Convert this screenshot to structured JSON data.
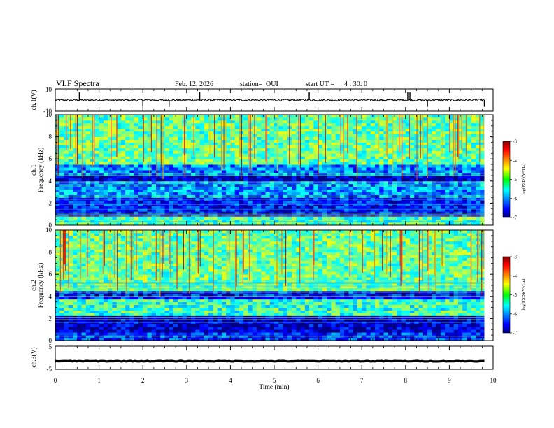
{
  "header": {
    "title": "VLF Spectra",
    "date": "Feb. 12, 2026",
    "station_label": "station=",
    "station": "OUI",
    "start_label": "start UT =",
    "start_time": "4 : 30: 0"
  },
  "colors": {
    "axis": "#000000",
    "trace": "#000000",
    "spectrogram_low": "#000080",
    "spectrogram_high": "#800000"
  },
  "chart_data": [
    {
      "type": "line",
      "id": "ch1-waveform",
      "ylabel": "ch.1(V)",
      "ylim": [
        -10,
        10
      ],
      "yticks": [
        "10",
        "-10"
      ],
      "baseline": 0,
      "noise_amplitude": 0.8,
      "spikes_at_min": [
        0.55,
        2.0,
        2.6,
        3.3,
        5.8,
        8.05,
        8.1,
        8.5,
        9.8
      ]
    },
    {
      "type": "heatmap",
      "id": "ch1-spectrogram",
      "ylabel_channel": "ch.1",
      "ylabel": "Frequency (kHz)",
      "ylim": [
        0,
        10
      ],
      "yticks": [
        "0",
        "2",
        "4",
        "6",
        "8",
        "10"
      ],
      "xlim": [
        0,
        9.8
      ],
      "colorbar": {
        "label": "log(PSD)(V²/Hz)",
        "range": [
          -7,
          -3
        ],
        "ticks": [
          "-3",
          "-4",
          "-5",
          "-6",
          "-7"
        ]
      },
      "description_bands_khz": [
        {
          "from": 0,
          "to": 0.8,
          "level": -5.2
        },
        {
          "from": 0.8,
          "to": 2.5,
          "level": -6.4
        },
        {
          "from": 2.5,
          "to": 4.0,
          "level": -5.9
        },
        {
          "from": 4.0,
          "to": 4.4,
          "level": -6.8
        },
        {
          "from": 4.4,
          "to": 5.6,
          "level": -6.0
        },
        {
          "from": 5.6,
          "to": 10,
          "level": -5.1
        }
      ]
    },
    {
      "type": "heatmap",
      "id": "ch2-spectrogram",
      "ylabel_channel": "ch.2",
      "ylabel": "Frequency (kHz)",
      "ylim": [
        0,
        10
      ],
      "yticks": [
        "0",
        "2",
        "4",
        "6",
        "8",
        "10"
      ],
      "xlim": [
        0,
        9.8
      ],
      "colorbar": {
        "label": "log(PSD)(V²/Hz)",
        "range": [
          -7,
          -3
        ],
        "ticks": [
          "-3",
          "-4",
          "-5",
          "-6",
          "-7"
        ]
      },
      "description_bands_khz": [
        {
          "from": 0,
          "to": 0.8,
          "level": -6.3
        },
        {
          "from": 0.8,
          "to": 2.2,
          "level": -6.7
        },
        {
          "from": 2.2,
          "to": 3.8,
          "level": -5.3
        },
        {
          "from": 3.8,
          "to": 4.6,
          "level": -6.4
        },
        {
          "from": 4.6,
          "to": 10,
          "level": -5.1
        }
      ]
    },
    {
      "type": "line",
      "id": "ch3-waveform",
      "ylabel": "ch.3(V)",
      "ylim": [
        -5,
        5
      ],
      "yticks": [
        "5",
        "-5"
      ],
      "baseline": -1.5,
      "noise_amplitude": 0.15
    }
  ],
  "xaxis": {
    "label": "Time (min)",
    "range": [
      0,
      10
    ],
    "ticks": [
      "0",
      "1",
      "2",
      "3",
      "4",
      "5",
      "6",
      "7",
      "8",
      "9",
      "10"
    ]
  }
}
